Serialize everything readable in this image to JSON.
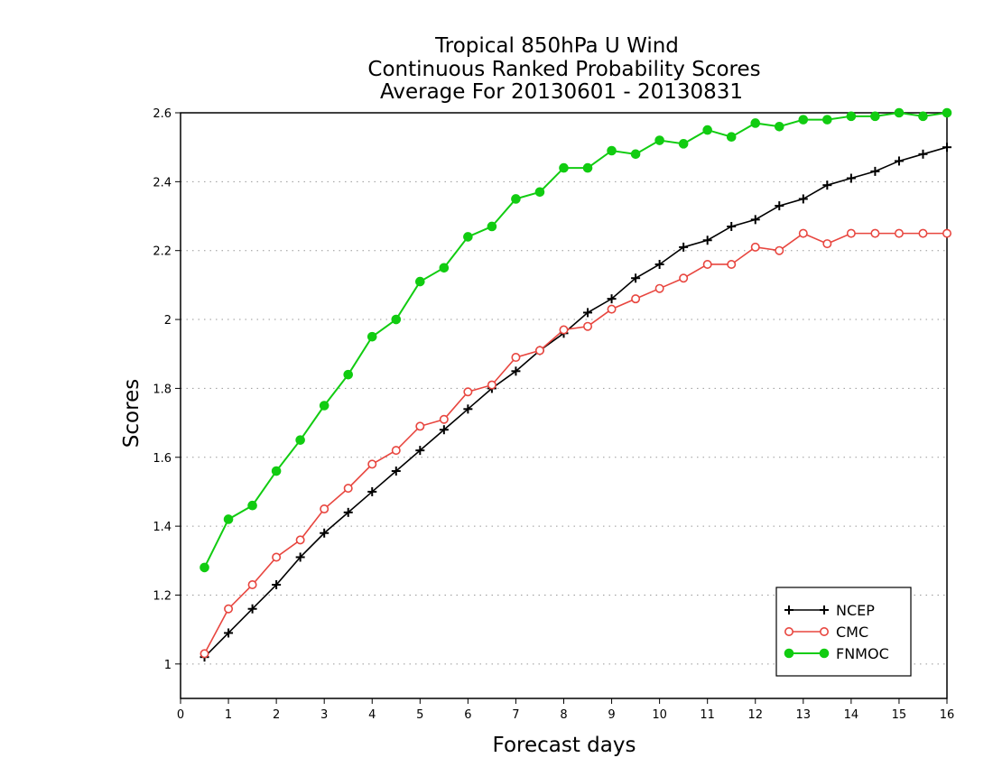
{
  "chart_data": {
    "type": "line",
    "title_lines": [
      "Tropical 850hPa U Wind",
      "Continuous Ranked Probability Scores",
      "Average For 20130601 - 20130831"
    ],
    "xlabel": "Forecast days",
    "ylabel": "Scores",
    "xlim": [
      0,
      16
    ],
    "ylim": [
      0.9,
      2.6
    ],
    "xticks": [
      0,
      1,
      2,
      3,
      4,
      5,
      6,
      7,
      8,
      9,
      10,
      11,
      12,
      13,
      14,
      15,
      16
    ],
    "yticks": [
      1,
      1.2,
      1.4,
      1.6,
      1.8,
      2,
      2.2,
      2.4,
      2.6
    ],
    "ytick_labels": [
      "1",
      "1.2",
      "1.4",
      "1.6",
      "1.8",
      "2",
      "2.2",
      "2.4",
      "2.6"
    ],
    "grid": "horizontal-dotted",
    "legend_position": "bottom-right",
    "x": [
      0.5,
      1,
      1.5,
      2,
      2.5,
      3,
      3.5,
      4,
      4.5,
      5,
      5.5,
      6,
      6.5,
      7,
      7.5,
      8,
      8.5,
      9,
      9.5,
      10,
      10.5,
      11,
      11.5,
      12,
      12.5,
      13,
      13.5,
      14,
      14.5,
      15,
      15.5,
      16
    ],
    "series": [
      {
        "name": "NCEP",
        "color": "#000000",
        "marker": "plus",
        "values": [
          1.02,
          1.09,
          1.16,
          1.23,
          1.31,
          1.38,
          1.44,
          1.5,
          1.56,
          1.62,
          1.68,
          1.74,
          1.8,
          1.85,
          1.91,
          1.96,
          2.02,
          2.06,
          2.12,
          2.16,
          2.21,
          2.23,
          2.27,
          2.29,
          2.33,
          2.35,
          2.39,
          2.41,
          2.43,
          2.46,
          2.48,
          2.5
        ]
      },
      {
        "name": "CMC",
        "color": "#e8463f",
        "marker": "open-circle",
        "values": [
          1.03,
          1.16,
          1.23,
          1.31,
          1.36,
          1.45,
          1.51,
          1.58,
          1.62,
          1.69,
          1.71,
          1.79,
          1.81,
          1.89,
          1.91,
          1.97,
          1.98,
          2.03,
          2.06,
          2.09,
          2.12,
          2.16,
          2.16,
          2.21,
          2.2,
          2.25,
          2.22,
          2.25,
          2.25,
          2.25,
          2.25,
          2.25
        ]
      },
      {
        "name": "FNMOC",
        "color": "#11cc11",
        "marker": "filled-circle",
        "values": [
          1.28,
          1.42,
          1.46,
          1.56,
          1.65,
          1.75,
          1.84,
          1.95,
          2.0,
          2.11,
          2.15,
          2.24,
          2.27,
          2.35,
          2.37,
          2.44,
          2.44,
          2.49,
          2.48,
          2.52,
          2.51,
          2.55,
          2.53,
          2.57,
          2.56,
          2.58,
          2.58,
          2.59,
          2.59,
          2.6,
          2.59,
          2.6
        ]
      }
    ]
  }
}
